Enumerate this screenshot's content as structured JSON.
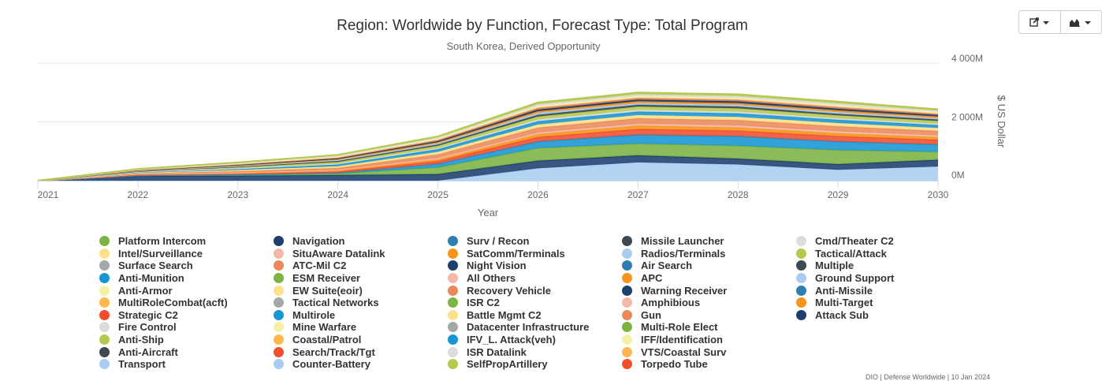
{
  "toolbar": {
    "export_icon": "share-icon",
    "chart_type_icon": "area-chart-icon"
  },
  "credits": "DIO | Defense Worldwide | 10 Jan 2024",
  "chart_data": {
    "type": "area",
    "stacked": true,
    "title": "Region: Worldwide by Function, Forecast Type: Total Program",
    "subtitle": "South Korea, Derived Opportunity",
    "xlabel": "Year",
    "ylabel": "$ US Dollar",
    "x": [
      "2021",
      "2022",
      "2023",
      "2024",
      "2025",
      "2026",
      "2027",
      "2028",
      "2029",
      "2030"
    ],
    "ylim": [
      0,
      4000
    ],
    "y_ticks": [
      0,
      2000,
      4000
    ],
    "y_tick_labels": [
      "0M",
      "2 000M",
      "4 000M"
    ],
    "y_axis_side": "right",
    "grid": true,
    "legend_position": "bottom",
    "series": [
      {
        "name": "Platform Intercom",
        "color": "#7cb342",
        "values": [
          0,
          0,
          0,
          0,
          0,
          0,
          0,
          0,
          0,
          0
        ]
      },
      {
        "name": "Intel/Surveillance",
        "color": "#ffe08a",
        "values": [
          0,
          0,
          0,
          0,
          0,
          0,
          0,
          0,
          0,
          0
        ]
      },
      {
        "name": "Surface Search",
        "color": "#a3a8ab",
        "values": [
          0,
          0,
          0,
          0,
          0,
          0,
          0,
          0,
          0,
          0
        ]
      },
      {
        "name": "Anti-Munition",
        "color": "#1795d4",
        "values": [
          0,
          0,
          0,
          0,
          0,
          0,
          0,
          0,
          0,
          0
        ]
      },
      {
        "name": "Anti-Armor",
        "color": "#f6f0a6",
        "values": [
          0,
          0,
          0,
          0,
          0,
          0,
          0,
          0,
          0,
          0
        ]
      },
      {
        "name": "MultiRoleCombat(acft)",
        "color": "#ffb84d",
        "values": [
          0,
          0,
          0,
          0,
          0,
          0,
          0,
          0,
          0,
          0
        ]
      },
      {
        "name": "Strategic C2",
        "color": "#f04e2e",
        "values": [
          0,
          0,
          0,
          0,
          0,
          0,
          0,
          0,
          0,
          0
        ]
      },
      {
        "name": "Fire Control",
        "color": "#dcdcdc",
        "values": [
          0,
          0,
          0,
          0,
          0,
          0,
          0,
          0,
          0,
          0
        ]
      },
      {
        "name": "Anti-Ship",
        "color": "#b5c94f",
        "values": [
          0,
          0,
          0,
          0,
          0,
          0,
          0,
          0,
          0,
          0
        ]
      },
      {
        "name": "Anti-Aircraft",
        "color": "#3d4a52",
        "values": [
          0,
          0,
          0,
          0,
          0,
          0,
          0,
          0,
          0,
          0
        ]
      },
      {
        "name": "Transport",
        "color": "#a9cdf0",
        "values": [
          0,
          0,
          0,
          0,
          0,
          420,
          620,
          550,
          370,
          480
        ]
      },
      {
        "name": "Navigation",
        "color": "#1d3f6e",
        "values": [
          0,
          160,
          170,
          190,
          220,
          260,
          240,
          200,
          190,
          230
        ]
      },
      {
        "name": "SituAware Datalink",
        "color": "#f4b8a8",
        "values": [
          0,
          0,
          0,
          0,
          0,
          0,
          0,
          0,
          0,
          0
        ]
      },
      {
        "name": "ATC-Mil C2",
        "color": "#ea8a5a",
        "values": [
          0,
          0,
          0,
          0,
          0,
          0,
          0,
          0,
          0,
          0
        ]
      },
      {
        "name": "ESM Receiver",
        "color": "#7cb342",
        "values": [
          0,
          20,
          40,
          50,
          230,
          430,
          400,
          440,
          480,
          270
        ]
      },
      {
        "name": "EW Suite(eoir)",
        "color": "#ffe08a",
        "values": [
          0,
          0,
          0,
          0,
          0,
          0,
          0,
          0,
          0,
          0
        ]
      },
      {
        "name": "Tactical Networks",
        "color": "#a3a8ab",
        "values": [
          0,
          0,
          0,
          0,
          0,
          0,
          0,
          0,
          0,
          0
        ]
      },
      {
        "name": "Multirole",
        "color": "#1795d4",
        "values": [
          0,
          0,
          0,
          20,
          120,
          220,
          300,
          320,
          290,
          250
        ]
      },
      {
        "name": "Mine Warfare",
        "color": "#f6f0a6",
        "values": [
          0,
          0,
          0,
          0,
          0,
          0,
          0,
          0,
          0,
          0
        ]
      },
      {
        "name": "Coastal/Patrol",
        "color": "#ffb84d",
        "values": [
          0,
          0,
          0,
          0,
          0,
          0,
          0,
          0,
          0,
          0
        ]
      },
      {
        "name": "Search/Track/Tgt",
        "color": "#f04e2e",
        "values": [
          0,
          20,
          30,
          50,
          90,
          150,
          190,
          190,
          180,
          160
        ]
      },
      {
        "name": "Counter-Battery",
        "color": "#a9cdf0",
        "values": [
          0,
          0,
          0,
          0,
          0,
          0,
          0,
          0,
          0,
          0
        ]
      },
      {
        "name": "Surv / Recon",
        "color": "#2e7fb0",
        "values": [
          0,
          0,
          0,
          0,
          0,
          0,
          0,
          0,
          0,
          0
        ]
      },
      {
        "name": "SatComm/Terminals",
        "color": "#f7941d",
        "values": [
          0,
          20,
          20,
          30,
          60,
          100,
          120,
          110,
          100,
          90
        ]
      },
      {
        "name": "Night Vision",
        "color": "#1d3f6e",
        "values": [
          0,
          0,
          0,
          0,
          0,
          0,
          0,
          0,
          0,
          0
        ]
      },
      {
        "name": "All Others",
        "color": "#f4b8a8",
        "values": [
          0,
          10,
          20,
          30,
          50,
          60,
          70,
          70,
          70,
          60
        ]
      },
      {
        "name": "Recovery Vehicle",
        "color": "#ea8a5a",
        "values": [
          0,
          20,
          40,
          60,
          120,
          160,
          180,
          180,
          170,
          150
        ]
      },
      {
        "name": "ISR C2",
        "color": "#7cb342",
        "values": [
          0,
          0,
          0,
          0,
          0,
          0,
          0,
          0,
          0,
          0
        ]
      },
      {
        "name": "Battle Mgmt C2",
        "color": "#ffe08a",
        "values": [
          0,
          20,
          40,
          60,
          90,
          110,
          110,
          110,
          110,
          100
        ]
      },
      {
        "name": "Datacenter Infrastructure",
        "color": "#a3a8ab",
        "values": [
          0,
          0,
          0,
          0,
          0,
          0,
          0,
          0,
          0,
          0
        ]
      },
      {
        "name": "IFV_L. Attack(veh)",
        "color": "#1795d4",
        "values": [
          0,
          20,
          40,
          60,
          90,
          110,
          120,
          120,
          110,
          100
        ]
      },
      {
        "name": "ISR Datalink",
        "color": "#dcdcdc",
        "values": [
          0,
          10,
          20,
          30,
          40,
          60,
          60,
          60,
          50,
          50
        ]
      },
      {
        "name": "SelfPropArtillery",
        "color": "#b5c94f",
        "values": [
          0,
          20,
          40,
          60,
          80,
          100,
          110,
          110,
          100,
          90
        ]
      },
      {
        "name": "Missile Launcher",
        "color": "#3d4a52",
        "values": [
          0,
          10,
          20,
          30,
          40,
          60,
          60,
          60,
          50,
          50
        ]
      },
      {
        "name": "Radios/Terminals",
        "color": "#a9cdf0",
        "values": [
          0,
          10,
          20,
          30,
          40,
          60,
          60,
          60,
          60,
          50
        ]
      },
      {
        "name": "Air Search",
        "color": "#2e7fb0",
        "values": [
          0,
          0,
          0,
          0,
          0,
          0,
          0,
          0,
          0,
          0
        ]
      },
      {
        "name": "APC",
        "color": "#f7941d",
        "values": [
          0,
          10,
          20,
          30,
          40,
          60,
          60,
          60,
          60,
          50
        ]
      },
      {
        "name": "Warning Receiver",
        "color": "#1d3f6e",
        "values": [
          0,
          10,
          20,
          30,
          40,
          60,
          60,
          60,
          60,
          50
        ]
      },
      {
        "name": "Amphibious",
        "color": "#f4b8a8",
        "values": [
          0,
          0,
          0,
          0,
          0,
          0,
          0,
          0,
          0,
          0
        ]
      },
      {
        "name": "Gun",
        "color": "#ea8a5a",
        "values": [
          0,
          10,
          20,
          30,
          40,
          60,
          60,
          60,
          60,
          50
        ]
      },
      {
        "name": "Multi-Role Elect",
        "color": "#7cb342",
        "values": [
          0,
          0,
          0,
          0,
          0,
          0,
          0,
          0,
          0,
          0
        ]
      },
      {
        "name": "IFF/Identification",
        "color": "#f6f0a6",
        "values": [
          0,
          10,
          20,
          30,
          40,
          60,
          60,
          60,
          60,
          50
        ]
      },
      {
        "name": "VTS/Coastal Surv",
        "color": "#ffb84d",
        "values": [
          0,
          0,
          0,
          0,
          0,
          0,
          0,
          0,
          0,
          0
        ]
      },
      {
        "name": "Torpedo Tube",
        "color": "#f04e2e",
        "values": [
          0,
          0,
          0,
          0,
          0,
          0,
          0,
          0,
          0,
          0
        ]
      },
      {
        "name": "Cmd/Theater C2",
        "color": "#dcdcdc",
        "values": [
          0,
          10,
          20,
          30,
          40,
          60,
          60,
          60,
          60,
          50
        ]
      },
      {
        "name": "Tactical/Attack",
        "color": "#b5c94f",
        "values": [
          0,
          10,
          20,
          30,
          40,
          60,
          60,
          60,
          60,
          50
        ]
      },
      {
        "name": "Multiple",
        "color": "#3d4a52",
        "values": [
          0,
          0,
          0,
          0,
          0,
          0,
          0,
          0,
          0,
          0
        ]
      },
      {
        "name": "Ground Support",
        "color": "#a9cdf0",
        "values": [
          0,
          0,
          0,
          0,
          0,
          0,
          0,
          0,
          0,
          0
        ]
      },
      {
        "name": "Anti-Missile",
        "color": "#2e7fb0",
        "values": [
          0,
          0,
          0,
          0,
          0,
          0,
          0,
          0,
          0,
          0
        ]
      },
      {
        "name": "Multi-Target",
        "color": "#f7941d",
        "values": [
          0,
          0,
          0,
          0,
          0,
          0,
          0,
          0,
          0,
          0
        ]
      },
      {
        "name": "Attack Sub",
        "color": "#1d3f6e",
        "values": [
          0,
          0,
          0,
          0,
          0,
          0,
          0,
          0,
          0,
          0
        ]
      }
    ]
  }
}
